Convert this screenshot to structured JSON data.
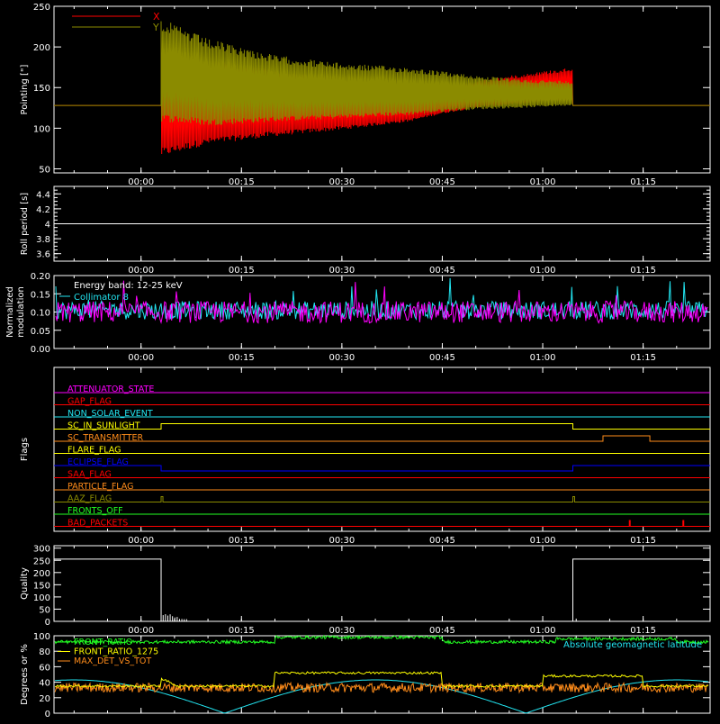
{
  "colors": {
    "background": "#000000",
    "axes": "#ffffff",
    "red": "#ff0000",
    "olive": "#8b8b00",
    "cyan": "#22e6f2",
    "magenta": "#ff00ff",
    "green": "#22ff22",
    "yellow": "#ffff00",
    "orange": "#ff8c1a",
    "blue": "#0000ff"
  },
  "time_axis": {
    "tick_labels": [
      "00:00",
      "00:15",
      "00:30",
      "00:45",
      "01:00",
      "01:15"
    ],
    "tick_minutes": [
      0,
      15,
      30,
      45,
      60,
      75
    ],
    "range_minutes": [
      -13,
      85
    ]
  },
  "chart_data": [
    {
      "id": "pointing",
      "type": "line",
      "ylabel": "Pointing [\"]",
      "yticks": [
        50,
        100,
        150,
        200,
        250
      ],
      "ylim": [
        45,
        250
      ],
      "legend": {
        "placement": "top-left",
        "entries": [
          "X",
          "Y"
        ]
      },
      "series": [
        {
          "name": "X",
          "color": "red",
          "baseline": 128,
          "envelope_minutes": [
            3,
            10,
            20,
            30,
            40,
            45,
            50,
            57,
            64.5
          ],
          "upper": [
            200,
            185,
            172,
            160,
            150,
            150,
            158,
            167,
            175
          ],
          "lower": [
            65,
            80,
            90,
            98,
            108,
            118,
            125,
            130,
            135
          ]
        },
        {
          "name": "Y",
          "color": "olive",
          "baseline": 128,
          "envelope_minutes": [
            3,
            10,
            20,
            30,
            40,
            45,
            50,
            57,
            64.5
          ],
          "upper": [
            235,
            210,
            190,
            180,
            175,
            170,
            165,
            160,
            158
          ],
          "lower": [
            108,
            103,
            108,
            112,
            116,
            120,
            123,
            125,
            128
          ]
        }
      ],
      "active_minutes": [
        3,
        64.5
      ]
    },
    {
      "id": "roll",
      "type": "line",
      "ylabel": "Roll period [s]",
      "yticks": [
        3.6,
        3.8,
        4.0,
        4.2,
        4.4
      ],
      "ylim": [
        3.5,
        4.5
      ],
      "series": [
        {
          "color": "axes",
          "constant": 4.0
        }
      ]
    },
    {
      "id": "modulation",
      "type": "line",
      "ylabel_lines": [
        "Normalized",
        "modulation"
      ],
      "yticks": [
        0.0,
        0.05,
        0.1,
        0.15,
        0.2
      ],
      "ytick_labels": [
        "0.00",
        "0.05",
        "0.10",
        "0.15",
        "0.20"
      ],
      "ylim": [
        0,
        0.2
      ],
      "annotations": [
        "Energy band: 12-25 keV",
        "Collimator 8"
      ],
      "series": [
        {
          "name": "Collimator 8",
          "color": "cyan",
          "mean": 0.105,
          "noise": 0.025
        },
        {
          "name": "",
          "color": "magenta",
          "mean": 0.1,
          "noise": 0.03
        }
      ]
    },
    {
      "id": "flags",
      "type": "line",
      "ylabel": "Flags",
      "series": [
        {
          "name": "ATTENUATOR_STATE",
          "color": "magenta",
          "label_color": "magenta",
          "state": "constant"
        },
        {
          "name": "GAP_FLAG",
          "color": "red",
          "label_color": "red",
          "state": "constant"
        },
        {
          "name": "NON_SOLAR_EVENT",
          "color": "cyan",
          "label_color": "cyan",
          "state": "constant"
        },
        {
          "name": "SC_IN_SUNLIGHT",
          "color": "yellow",
          "label_color": "yellow",
          "state": "high",
          "high_minutes": [
            [
              3,
              64.5
            ]
          ]
        },
        {
          "name": "SC_TRANSMITTER",
          "color": "orange",
          "label_color": "orange",
          "state": "high",
          "high_minutes": [
            [
              69,
              76
            ]
          ]
        },
        {
          "name": "FLARE_FLAG",
          "color": "yellow",
          "label_color": "yellow",
          "state": "constant"
        },
        {
          "name": "ECLIPSE_FLAG",
          "color": "blue",
          "label_color": "blue",
          "state": "low",
          "low_minutes": [
            [
              3,
              64.5
            ]
          ]
        },
        {
          "name": "SAA_FLAG",
          "color": "red",
          "label_color": "red",
          "state": "constant"
        },
        {
          "name": "PARTICLE_FLAG",
          "color": "orange",
          "label_color": "orange",
          "state": "constant"
        },
        {
          "name": "AAZ_FLAG",
          "color": "olive",
          "label_color": "olive",
          "state": "pulse",
          "pulse_minutes": [
            3,
            64.5
          ]
        },
        {
          "name": "FRONTS_OFF",
          "color": "green",
          "label_color": "green",
          "state": "constant"
        },
        {
          "name": "BAD_PACKETS",
          "color": "red",
          "label_color": "red",
          "state": "spike",
          "spike_minutes": [
            73,
            81
          ]
        }
      ]
    },
    {
      "id": "quality",
      "type": "line",
      "ylabel": "Quality",
      "yticks": [
        0,
        50,
        100,
        150,
        200,
        250,
        300
      ],
      "ylim": [
        0,
        310
      ],
      "series": [
        {
          "color": "axes",
          "high_value": 255,
          "low_minutes": [
            3,
            64.5
          ]
        }
      ]
    },
    {
      "id": "ratios",
      "type": "line",
      "ylabel": "Degrees or %",
      "yticks": [
        0,
        20,
        40,
        60,
        80,
        100
      ],
      "ylim": [
        0,
        100
      ],
      "legend": {
        "placement": "top-left",
        "entries": [
          "FRONT_RATIO",
          "FRONT_RATIO_1275",
          "MAX_DET_VS_TOT"
        ]
      },
      "annotations": [
        "Absolute geomagnetic latitude"
      ],
      "series": [
        {
          "name": "FRONT_RATIO",
          "color": "green",
          "mean": 92,
          "noise": 2
        },
        {
          "name": "FRONT_RATIO_1275",
          "color": "yellow",
          "mean": 35,
          "noise": 3
        },
        {
          "name": "MAX_DET_VS_TOT",
          "color": "orange",
          "mean": 33,
          "noise": 6
        },
        {
          "name": "Absolute geomagnetic latitude",
          "color": "cyan",
          "period_minutes": 45,
          "amplitude": 43
        }
      ]
    }
  ]
}
